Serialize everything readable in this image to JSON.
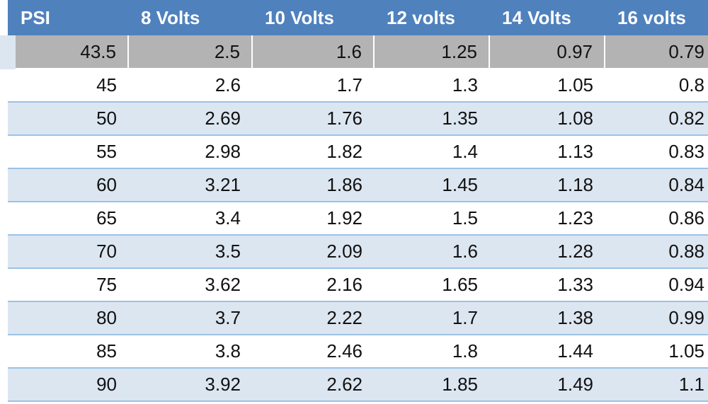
{
  "table": {
    "header": [
      "PSI",
      "8 Volts",
      "10 Volts",
      "12 volts",
      "14 Volts",
      "16 volts"
    ],
    "rows": [
      [
        "43.5",
        "2.5",
        "1.6",
        "1.25",
        "0.97",
        "0.79"
      ],
      [
        "45",
        "2.6",
        "1.7",
        "1.3",
        "1.05",
        "0.8"
      ],
      [
        "50",
        "2.69",
        "1.76",
        "1.35",
        "1.08",
        "0.82"
      ],
      [
        "55",
        "2.98",
        "1.82",
        "1.4",
        "1.13",
        "0.83"
      ],
      [
        "60",
        "3.21",
        "1.86",
        "1.45",
        "1.18",
        "0.84"
      ],
      [
        "65",
        "3.4",
        "1.92",
        "1.5",
        "1.23",
        "0.86"
      ],
      [
        "70",
        "3.5",
        "2.09",
        "1.6",
        "1.28",
        "0.88"
      ],
      [
        "75",
        "3.62",
        "2.16",
        "1.65",
        "1.33",
        "0.94"
      ],
      [
        "80",
        "3.7",
        "2.22",
        "1.7",
        "1.38",
        "0.99"
      ],
      [
        "85",
        "3.8",
        "2.46",
        "1.8",
        "1.44",
        "1.05"
      ],
      [
        "90",
        "3.92",
        "2.62",
        "1.85",
        "1.49",
        "1.1"
      ]
    ]
  }
}
